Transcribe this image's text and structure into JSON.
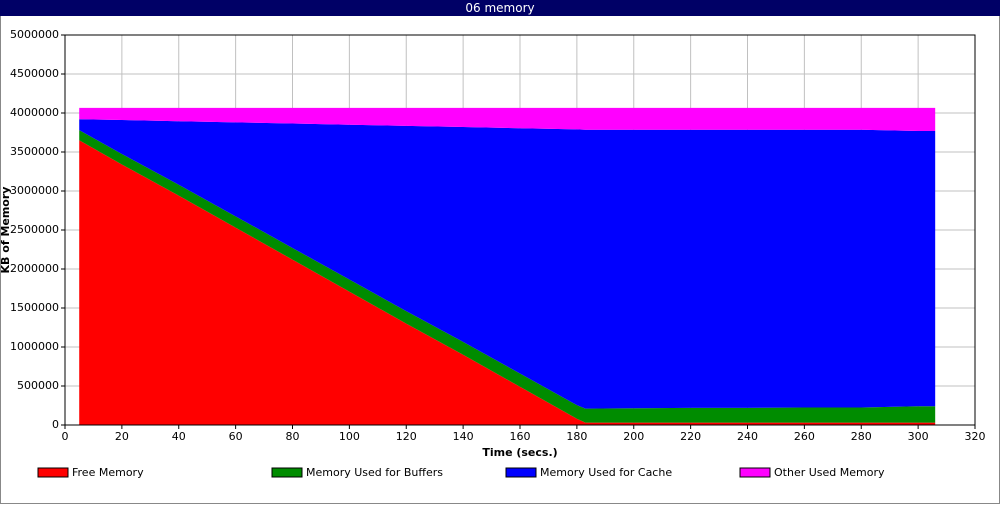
{
  "chart_data": {
    "type": "stacked_area",
    "title": "06 memory",
    "x_label": "Time (secs.)",
    "y_label": "KB of Memory",
    "x": [
      5,
      20,
      40,
      60,
      80,
      100,
      120,
      140,
      160,
      180,
      183,
      200,
      220,
      240,
      260,
      280,
      300,
      306
    ],
    "series": [
      {
        "name": "Free Memory",
        "color": "#ff0000",
        "values": [
          3650000,
          3340000,
          2940000,
          2530000,
          2120000,
          1710000,
          1300000,
          900000,
          490000,
          80000,
          30000,
          30000,
          30000,
          30000,
          30000,
          30000,
          30000,
          30000
        ]
      },
      {
        "name": "Memory Used for Buffers",
        "color": "#008c00",
        "values": [
          130000,
          135000,
          140000,
          145000,
          150000,
          155000,
          160000,
          165000,
          170000,
          175000,
          180000,
          185000,
          190000,
          190000,
          195000,
          195000,
          210000,
          210000
        ]
      },
      {
        "name": "Memory Used for Cache",
        "color": "#0000ff",
        "values": [
          140000,
          435000,
          815000,
          1205000,
          1595000,
          1985000,
          2375000,
          2755000,
          3145000,
          3535000,
          3575000,
          3570000,
          3565000,
          3565000,
          3560000,
          3560000,
          3530000,
          3530000
        ]
      },
      {
        "name": "Other Used Memory",
        "color": "#ff00ff",
        "values": [
          145000,
          155000,
          170000,
          185000,
          200000,
          215000,
          230000,
          245000,
          260000,
          275000,
          280000,
          280000,
          280000,
          280000,
          280000,
          280000,
          295000,
          295000
        ]
      }
    ],
    "xlim": [
      0,
      320
    ],
    "xticks": [
      0,
      20,
      40,
      60,
      80,
      100,
      120,
      140,
      160,
      180,
      200,
      220,
      240,
      260,
      280,
      300,
      320
    ],
    "ylim": [
      0,
      5000000
    ],
    "yticks": [
      0,
      500000,
      1000000,
      1500000,
      2000000,
      2500000,
      3000000,
      3500000,
      4000000,
      4500000,
      5000000
    ],
    "grid": true
  }
}
